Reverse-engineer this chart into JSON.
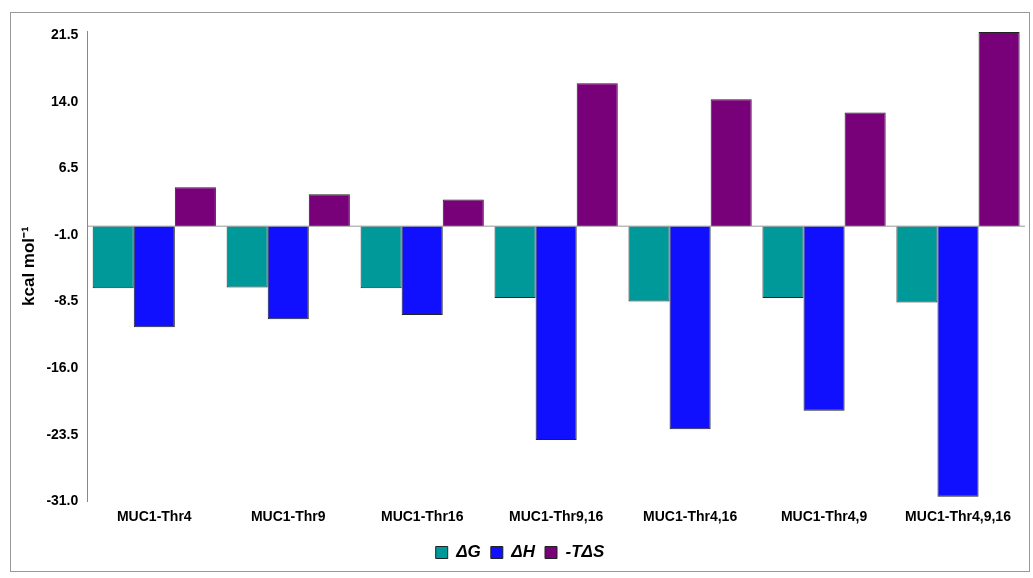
{
  "chart_data": {
    "type": "bar",
    "ylabel": "kcal mol⁻¹",
    "categories": [
      "MUC1-Thr4",
      "MUC1-Thr9",
      "MUC1-Thr16",
      "MUC1-Thr9,16",
      "MUC1-Thr4,16",
      "MUC1-Thr4,9",
      "MUC1-Thr4,9,16"
    ],
    "series": [
      {
        "name": "ΔG",
        "color": "#009999",
        "values": [
          -7.0,
          -6.9,
          -7.0,
          -8.1,
          -8.5,
          -8.1,
          -8.6
        ]
      },
      {
        "name": "ΔH",
        "color": "#1010ff",
        "values": [
          -11.4,
          -10.5,
          -10.0,
          -24.1,
          -22.9,
          -20.8,
          -30.5
        ]
      },
      {
        "name": "-TΔS",
        "color": "#780078",
        "values": [
          4.4,
          3.6,
          3.0,
          16.1,
          14.3,
          12.8,
          21.9
        ]
      }
    ],
    "ylim": [
      -31,
      22
    ],
    "yticks": [
      {
        "value": -31,
        "label": "-31.0"
      },
      -23.5,
      {
        "value": -16,
        "label": "-16.0"
      },
      -8.5,
      {
        "value": -1,
        "label": "-1.0"
      },
      6.5,
      {
        "value": 14,
        "label": "14.0"
      },
      21.5
    ],
    "grid": false,
    "legend": "bottom"
  }
}
